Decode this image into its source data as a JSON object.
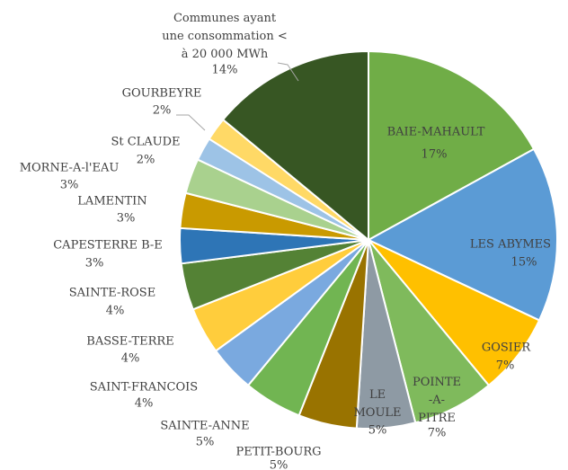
{
  "chart_data": {
    "type": "pie",
    "categories": [
      "BAIE-MAHAULT",
      "LES ABYMES",
      "GOSIER",
      "POINTE\n-A-\nPITRE",
      "LE\nMOULE",
      "PETIT-BOURG",
      "SAINTE-ANNE",
      "SAINT-FRANCOIS",
      "BASSE-TERRE",
      "SAINTE-ROSE",
      "CAPESTERRE B-E",
      "LAMENTIN",
      "MORNE-A-l'EAU",
      "St CLAUDE",
      "GOURBEYRE",
      "Communes ayant\nune consommation <\nà 20 000 MWh"
    ],
    "values": [
      17,
      15,
      7,
      7,
      5,
      5,
      5,
      4,
      4,
      4,
      3,
      3,
      3,
      2,
      2,
      14
    ],
    "value_labels": [
      "17%",
      "15%",
      "7%",
      "7%",
      "5%",
      "5%",
      "5%",
      "4%",
      "4%",
      "4%",
      "3%",
      "3%",
      "3%",
      "2%",
      "2%",
      "14%"
    ],
    "colors": [
      "#70ad47",
      "#5b9bd5",
      "#ffc000",
      "#7fba5c",
      "#8e9aa4",
      "#997300",
      "#71b552",
      "#7aa9df",
      "#ffcd3c",
      "#548235",
      "#2e75b6",
      "#c99a00",
      "#a9d18e",
      "#9dc3e6",
      "#ffd966",
      "#375623"
    ]
  }
}
